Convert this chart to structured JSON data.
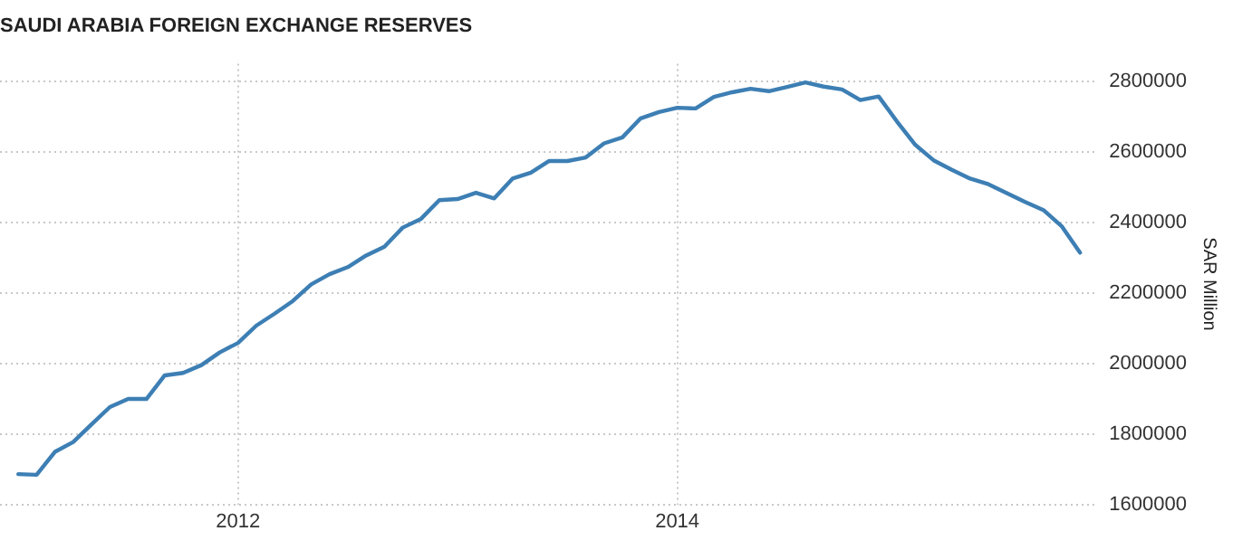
{
  "chart_data": {
    "type": "line",
    "title": "SAUDI ARABIA FOREIGN EXCHANGE RESERVES",
    "ylabel": "SAR Million",
    "x": [
      "2011-01",
      "2011-02",
      "2011-03",
      "2011-04",
      "2011-05",
      "2011-06",
      "2011-07",
      "2011-08",
      "2011-09",
      "2011-10",
      "2011-11",
      "2011-12",
      "2012-01",
      "2012-02",
      "2012-03",
      "2012-04",
      "2012-05",
      "2012-06",
      "2012-07",
      "2012-08",
      "2012-09",
      "2012-10",
      "2012-11",
      "2012-12",
      "2013-01",
      "2013-02",
      "2013-03",
      "2013-04",
      "2013-05",
      "2013-06",
      "2013-07",
      "2013-08",
      "2013-09",
      "2013-10",
      "2013-11",
      "2013-12",
      "2014-01",
      "2014-02",
      "2014-03",
      "2014-04",
      "2014-05",
      "2014-06",
      "2014-07",
      "2014-08",
      "2014-09",
      "2014-10",
      "2014-11",
      "2014-12",
      "2015-01",
      "2015-02",
      "2015-03",
      "2015-04",
      "2015-05",
      "2015-06",
      "2015-07",
      "2015-08",
      "2015-09",
      "2015-10",
      "2015-11"
    ],
    "series": [
      {
        "color": "#3d7fb4",
        "values": [
          1686000,
          1684000,
          1749000,
          1777000,
          1827000,
          1876000,
          1899000,
          1899000,
          1966000,
          1973000,
          1995000,
          2031000,
          2058000,
          2107000,
          2141000,
          2177000,
          2224000,
          2253000,
          2273000,
          2306000,
          2331000,
          2385000,
          2410000,
          2463000,
          2466000,
          2484000,
          2468000,
          2524000,
          2541000,
          2574000,
          2574000,
          2584000,
          2624000,
          2641000,
          2695000,
          2713000,
          2725000,
          2723000,
          2756000,
          2769000,
          2779000,
          2772000,
          2784000,
          2797000,
          2785000,
          2777000,
          2747000,
          2757000,
          2686000,
          2620000,
          2576000,
          2549000,
          2524000,
          2508000,
          2483000,
          2458000,
          2435000,
          2389000,
          2314000
        ]
      }
    ],
    "xlim": [
      "2010-12",
      "2015-12"
    ],
    "xticks": [
      "2012",
      "2014"
    ],
    "ylim": [
      1600000,
      2850000
    ],
    "yticks": [
      1600000,
      1800000,
      2000000,
      2200000,
      2400000,
      2600000,
      2800000
    ],
    "grid": true,
    "legend": false,
    "marker": "none",
    "line_style": "solid"
  }
}
